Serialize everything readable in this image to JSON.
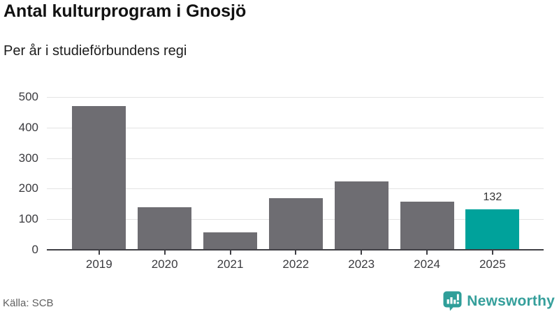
{
  "header": {
    "title": "Antal kulturprogram i Gnosjö",
    "subtitle": "Per år i studieförbundens regi"
  },
  "chart_data": {
    "type": "bar",
    "title": "Antal kulturprogram i Gnosjö",
    "subtitle": "Per år i studieförbundens regi",
    "categories": [
      "2019",
      "2020",
      "2021",
      "2022",
      "2023",
      "2024",
      "2025"
    ],
    "values": [
      470,
      140,
      56,
      170,
      223,
      157,
      132
    ],
    "highlight_index": 6,
    "value_labels": {
      "2025": "132"
    },
    "xlabel": "",
    "ylabel": "",
    "ylim": [
      0,
      500
    ],
    "yticks": [
      0,
      100,
      200,
      300,
      400,
      500
    ],
    "grid": "horizontal",
    "legend": "none",
    "bar_color": "#6e6d72",
    "highlight_color": "#00a29b"
  },
  "footer": {
    "source": "Källa: SCB",
    "logo_text": "Newsworthy"
  },
  "colors": {
    "accent": "#00a29b",
    "bar_gray": "#6e6d72",
    "grid_line": "#e3e3e3",
    "axis_line": "#404045",
    "logo_teal": "#359f9b"
  }
}
